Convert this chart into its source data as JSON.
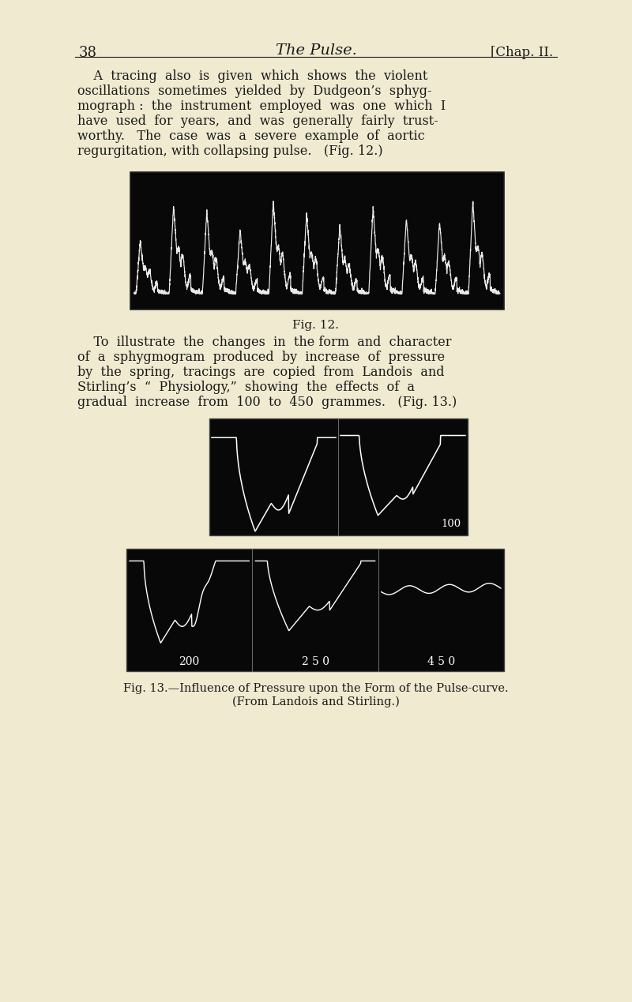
{
  "background_color": "#f0ead0",
  "text_color": "#1a1a1a",
  "page_number": "38",
  "header_center": "The Pulse.",
  "header_right": "[Chap. II.",
  "para1_lines": [
    "    A  tracing  also  is  given  which  shows  the  violent",
    "oscillations  sometimes  yielded  by  Dudgeon’s  sphyg-",
    "mograph :  the  instrument  employed  was  one  which  I",
    "have  used  for  years,  and  was  generally  fairly  trust-",
    "worthy.   The  case  was  a  severe  example  of  aortic",
    "regurgitation, with collapsing pulse.   (Fig. 12.)"
  ],
  "fig12_caption": "Fig. 12.",
  "para2_lines": [
    "    To  illustrate  the  changes  in  the form  and  character",
    "of  a  sphygmogram  produced  by  increase  of  pressure",
    "by  the  spring,  tracings  are  copied  from  Landois  and",
    "Stirling’s  “  Physiology,”  showing  the  effects  of  a",
    "gradual  increase  from  100  to  450  grammes.   (Fig. 13.)"
  ],
  "fig13_caption_line1": "Fig. 13.—Influence of Pressure upon the Form of the Pulse-curve.",
  "fig13_caption_line2": "(From Landois and Stirling.)",
  "fig12_bg": "#080808",
  "fig13_bg": "#080808",
  "label_100": "100",
  "label_200": "200",
  "label_250": "2 5 0",
  "label_450": "4 5 0"
}
